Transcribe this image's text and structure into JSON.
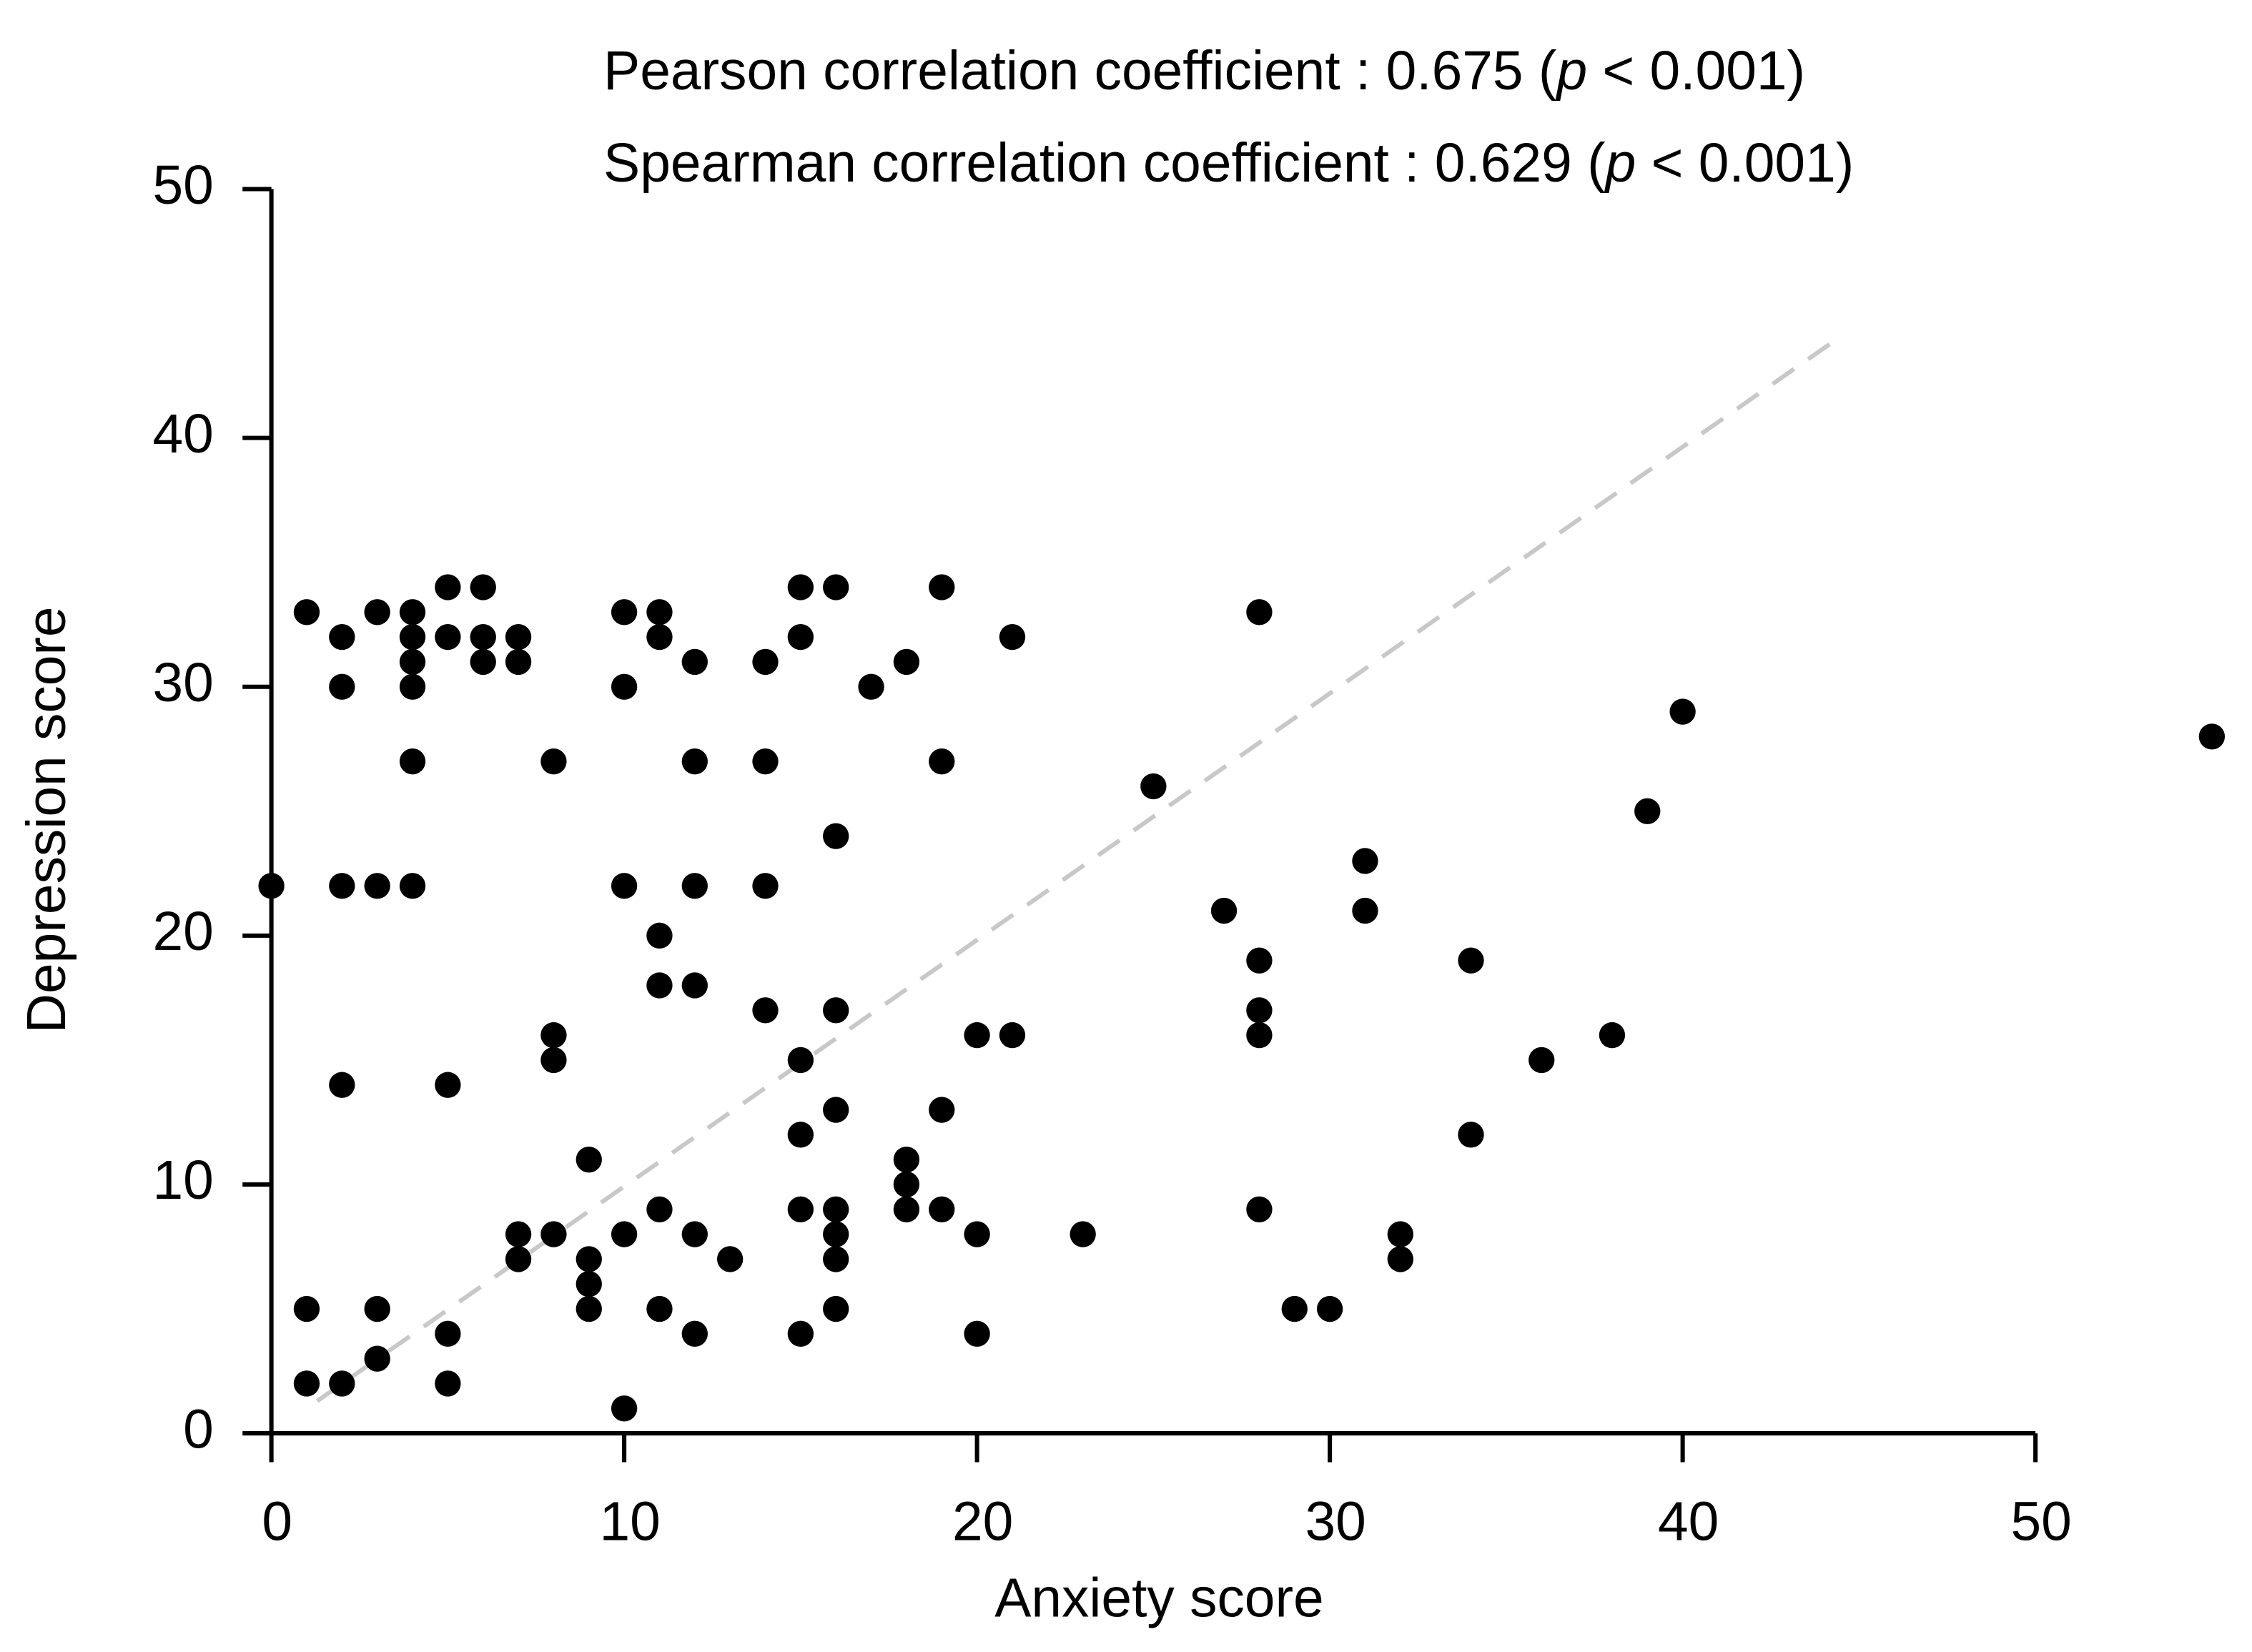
{
  "chart_data": {
    "type": "scatter",
    "annotations": [
      {
        "prefix": "Pearson correlation coefficient : 0.675 (",
        "italic": "p",
        "suffix": " < 0.001)"
      },
      {
        "prefix": "Spearman correlation coefficient : 0.629 (",
        "italic": "p",
        "suffix": " < 0.001)"
      }
    ],
    "x_label": "Anxiety score",
    "y_label": "Depression score",
    "xlim": [
      0,
      50
    ],
    "ylim": [
      0,
      50
    ],
    "xticks": [
      0,
      10,
      20,
      30,
      40,
      50
    ],
    "yticks": [
      0,
      10,
      20,
      30,
      40,
      50
    ],
    "color": "#000000",
    "x": [
      1,
      2,
      2,
      3,
      4,
      4,
      4,
      4,
      4,
      5,
      6,
      5,
      6,
      6,
      7,
      7,
      8,
      10,
      11,
      11,
      10,
      12,
      12,
      14,
      14,
      15,
      16,
      15,
      17,
      18,
      19,
      19,
      21,
      28,
      16,
      25,
      40,
      39,
      55,
      0,
      2,
      3,
      4,
      10,
      12,
      14,
      11,
      11,
      12,
      14,
      16,
      27,
      31,
      31,
      28,
      28,
      28,
      34,
      38,
      36,
      8,
      8,
      15,
      20,
      21,
      2,
      5,
      15,
      16,
      19,
      34,
      9,
      18,
      18,
      18,
      15,
      16,
      16,
      19,
      20,
      23,
      28,
      32,
      32,
      7,
      8,
      7,
      9,
      9,
      9,
      10,
      11,
      12,
      13,
      16,
      16,
      11,
      12,
      15,
      20,
      29,
      30,
      1,
      3,
      5,
      1,
      2,
      3,
      5,
      10
    ],
    "y": [
      33,
      32,
      30,
      33,
      33,
      32,
      31,
      30,
      27,
      34,
      34,
      32,
      32,
      31,
      32,
      31,
      27,
      33,
      33,
      32,
      30,
      31,
      27,
      31,
      27,
      34,
      34,
      32,
      30,
      31,
      34,
      27,
      32,
      33,
      24,
      26,
      29,
      25,
      28,
      22,
      22,
      22,
      22,
      22,
      22,
      22,
      20,
      18,
      18,
      17,
      17,
      21,
      23,
      21,
      19,
      17,
      16,
      19,
      16,
      15,
      16,
      15,
      15,
      16,
      16,
      14,
      14,
      12,
      13,
      13,
      12,
      11,
      11,
      10,
      9,
      9,
      9,
      8,
      9,
      8,
      8,
      9,
      8,
      7,
      8,
      8,
      7,
      7,
      6,
      5,
      8,
      9,
      8,
      7,
      7,
      5,
      5,
      4,
      4,
      4,
      5,
      5,
      5,
      5,
      4,
      2,
      2,
      3,
      2,
      1
    ],
    "trend_line": {
      "color": "#c8c8c8",
      "x": [
        1.3,
        44.5
      ],
      "y": [
        1.3,
        44.1
      ]
    }
  }
}
